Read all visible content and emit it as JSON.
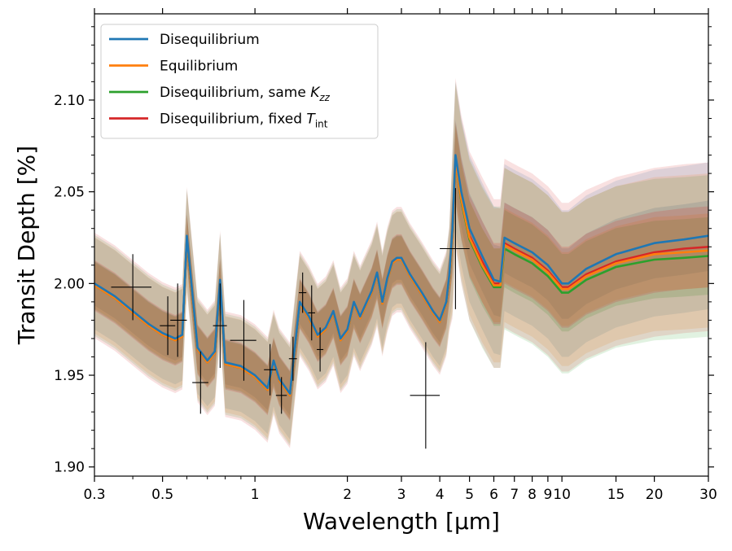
{
  "chart_data": {
    "type": "line",
    "xscale": "log",
    "xlabel": "Wavelength [µm]",
    "ylabel": "Transit Depth [%]",
    "xlim": [
      0.3,
      30
    ],
    "ylim": [
      1.895,
      2.147
    ],
    "xticks": [
      {
        "v": 0.3,
        "label": "0.3"
      },
      {
        "v": 0.5,
        "label": "0.5"
      },
      {
        "v": 1,
        "label": "1"
      },
      {
        "v": 2,
        "label": "2"
      },
      {
        "v": 3,
        "label": "3"
      },
      {
        "v": 4,
        "label": "4"
      },
      {
        "v": 5,
        "label": "5"
      },
      {
        "v": 6,
        "label": "6"
      },
      {
        "v": 7,
        "label": "7"
      },
      {
        "v": 8,
        "label": "8"
      },
      {
        "v": 9,
        "label": "9"
      },
      {
        "v": 10,
        "label": "10"
      },
      {
        "v": 15,
        "label": "15"
      },
      {
        "v": 20,
        "label": "20"
      },
      {
        "v": 30,
        "label": "30"
      }
    ],
    "yticks": [
      {
        "v": 1.9,
        "label": "1.90"
      },
      {
        "v": 1.95,
        "label": "1.95"
      },
      {
        "v": 2.0,
        "label": "2.00"
      },
      {
        "v": 2.05,
        "label": "2.05"
      },
      {
        "v": 2.1,
        "label": "2.10"
      }
    ],
    "legend_position": "top-left",
    "series": [
      {
        "name": "Disequilibrium",
        "color": "#1f77b4",
        "x": [
          0.3,
          0.35,
          0.4,
          0.45,
          0.5,
          0.55,
          0.58,
          0.6,
          0.65,
          0.7,
          0.74,
          0.77,
          0.8,
          0.9,
          1.0,
          1.1,
          1.15,
          1.2,
          1.3,
          1.35,
          1.4,
          1.5,
          1.6,
          1.7,
          1.8,
          1.9,
          2.0,
          2.1,
          2.2,
          2.4,
          2.5,
          2.6,
          2.7,
          2.8,
          2.9,
          3.0,
          3.2,
          3.5,
          3.8,
          4.0,
          4.2,
          4.3,
          4.4,
          4.5,
          4.7,
          5.0,
          5.5,
          6.0,
          6.3,
          6.5,
          7.0,
          8.0,
          9.0,
          10.0,
          10.5,
          12.0,
          15.0,
          20.0,
          25.0,
          30.0
        ],
        "y": [
          2.0,
          1.993,
          1.985,
          1.978,
          1.973,
          1.97,
          1.972,
          2.026,
          1.965,
          1.958,
          1.963,
          2.002,
          1.957,
          1.955,
          1.95,
          1.943,
          1.958,
          1.948,
          1.94,
          1.966,
          1.99,
          1.982,
          1.972,
          1.976,
          1.985,
          1.97,
          1.975,
          1.99,
          1.982,
          1.996,
          2.006,
          1.99,
          2.003,
          2.012,
          2.014,
          2.014,
          2.005,
          1.995,
          1.985,
          1.98,
          1.99,
          2.005,
          2.03,
          2.07,
          2.05,
          2.03,
          2.015,
          2.002,
          2.001,
          2.025,
          2.022,
          2.017,
          2.01,
          2.0,
          2.0,
          2.008,
          2.016,
          2.022,
          2.024,
          2.026
        ]
      },
      {
        "name": "Equilibrium",
        "color": "#ff7f0e",
        "x": [
          0.3,
          0.35,
          0.4,
          0.45,
          0.5,
          0.55,
          0.58,
          0.6,
          0.65,
          0.7,
          0.74,
          0.77,
          0.8,
          0.9,
          1.0,
          1.1,
          1.15,
          1.2,
          1.3,
          1.35,
          1.4,
          1.5,
          1.6,
          1.7,
          1.8,
          1.9,
          2.0,
          2.1,
          2.2,
          2.4,
          2.5,
          2.6,
          2.7,
          2.8,
          2.9,
          3.0,
          3.2,
          3.5,
          3.8,
          4.0,
          4.2,
          4.3,
          4.4,
          4.5,
          4.7,
          5.0,
          5.5,
          6.0,
          6.3,
          6.5,
          7.0,
          8.0,
          9.0,
          10.0,
          10.5,
          12.0,
          15.0,
          20.0,
          25.0,
          30.0
        ],
        "y": [
          1.999,
          1.992,
          1.984,
          1.977,
          1.972,
          1.969,
          1.971,
          2.024,
          1.964,
          1.957,
          1.962,
          2.0,
          1.956,
          1.954,
          1.949,
          1.942,
          1.957,
          1.947,
          1.939,
          1.965,
          1.989,
          1.981,
          1.971,
          1.975,
          1.984,
          1.969,
          1.974,
          1.989,
          1.981,
          1.995,
          2.005,
          1.989,
          2.002,
          2.011,
          2.013,
          2.013,
          2.004,
          1.994,
          1.984,
          1.979,
          1.989,
          2.003,
          2.027,
          2.066,
          2.046,
          2.025,
          2.01,
          1.999,
          1.999,
          2.021,
          2.018,
          2.013,
          2.006,
          1.997,
          1.997,
          2.004,
          2.011,
          2.016,
          2.017,
          2.018
        ]
      },
      {
        "name": "Disequilibrium, same K_zz",
        "color": "#2ca02c",
        "x": [
          0.3,
          0.35,
          0.4,
          0.45,
          0.5,
          0.55,
          0.58,
          0.6,
          0.65,
          0.7,
          0.74,
          0.77,
          0.8,
          0.9,
          1.0,
          1.1,
          1.15,
          1.2,
          1.3,
          1.35,
          1.4,
          1.5,
          1.6,
          1.7,
          1.8,
          1.9,
          2.0,
          2.1,
          2.2,
          2.4,
          2.5,
          2.6,
          2.7,
          2.8,
          2.9,
          3.0,
          3.2,
          3.5,
          3.8,
          4.0,
          4.2,
          4.3,
          4.4,
          4.5,
          4.7,
          5.0,
          5.5,
          6.0,
          6.3,
          6.5,
          7.0,
          8.0,
          9.0,
          10.0,
          10.5,
          12.0,
          15.0,
          20.0,
          25.0,
          30.0
        ],
        "y": [
          1.999,
          1.992,
          1.984,
          1.977,
          1.972,
          1.969,
          1.971,
          2.024,
          1.964,
          1.957,
          1.962,
          2.0,
          1.956,
          1.954,
          1.949,
          1.942,
          1.957,
          1.947,
          1.939,
          1.965,
          1.989,
          1.981,
          1.971,
          1.975,
          1.984,
          1.969,
          1.974,
          1.989,
          1.981,
          1.995,
          2.005,
          1.989,
          2.002,
          2.011,
          2.013,
          2.013,
          2.004,
          1.994,
          1.984,
          1.979,
          1.989,
          2.003,
          2.027,
          2.066,
          2.045,
          2.024,
          2.009,
          1.998,
          1.998,
          2.019,
          2.016,
          2.011,
          2.004,
          1.995,
          1.995,
          2.002,
          2.009,
          2.013,
          2.014,
          2.015
        ]
      },
      {
        "name": "Disequilibrium, fixed T_int",
        "color": "#d62728",
        "x": [
          0.3,
          0.35,
          0.4,
          0.45,
          0.5,
          0.55,
          0.58,
          0.6,
          0.65,
          0.7,
          0.74,
          0.77,
          0.8,
          0.9,
          1.0,
          1.1,
          1.15,
          1.2,
          1.3,
          1.35,
          1.4,
          1.5,
          1.6,
          1.7,
          1.8,
          1.9,
          2.0,
          2.1,
          2.2,
          2.4,
          2.5,
          2.6,
          2.7,
          2.8,
          2.9,
          3.0,
          3.2,
          3.5,
          3.8,
          4.0,
          4.2,
          4.3,
          4.4,
          4.5,
          4.7,
          5.0,
          5.5,
          6.0,
          6.3,
          6.5,
          7.0,
          8.0,
          9.0,
          10.0,
          10.5,
          12.0,
          15.0,
          20.0,
          25.0,
          30.0
        ],
        "y": [
          1.999,
          1.992,
          1.984,
          1.977,
          1.972,
          1.969,
          1.971,
          2.024,
          1.964,
          1.957,
          1.962,
          2.0,
          1.956,
          1.954,
          1.949,
          1.942,
          1.957,
          1.947,
          1.939,
          1.965,
          1.989,
          1.981,
          1.971,
          1.975,
          1.984,
          1.969,
          1.974,
          1.989,
          1.981,
          1.995,
          2.005,
          1.989,
          2.002,
          2.011,
          2.013,
          2.013,
          2.004,
          1.994,
          1.984,
          1.979,
          1.989,
          2.003,
          2.027,
          2.066,
          2.046,
          2.026,
          2.012,
          2.0,
          2.0,
          2.022,
          2.019,
          2.014,
          2.007,
          1.998,
          1.998,
          2.005,
          2.012,
          2.017,
          2.019,
          2.02
        ]
      }
    ],
    "uncertainty_bands": {
      "inner_halfwidth": 0.012,
      "outer_halfwidth": 0.025,
      "note": "shaded 1σ/2σ regions around each model, wider beyond 4.3 µm"
    },
    "observations": [
      {
        "x": 0.4,
        "xerr": [
          0.06,
          0.06
        ],
        "y": 1.998,
        "yerr": 0.018
      },
      {
        "x": 0.52,
        "xerr": [
          0.03,
          0.03
        ],
        "y": 1.977,
        "yerr": 0.016
      },
      {
        "x": 0.56,
        "xerr": [
          0.03,
          0.04
        ],
        "y": 1.98,
        "yerr": 0.02
      },
      {
        "x": 0.665,
        "xerr": [
          0.04,
          0.04
        ],
        "y": 1.946,
        "yerr": 0.017
      },
      {
        "x": 0.77,
        "xerr": [
          0.04,
          0.04
        ],
        "y": 1.977,
        "yerr": 0.023
      },
      {
        "x": 0.92,
        "xerr": [
          0.09,
          0.09
        ],
        "y": 1.969,
        "yerr": 0.022
      },
      {
        "x": 1.12,
        "xerr": [
          0.05,
          0.05
        ],
        "y": 1.953,
        "yerr": 0.014
      },
      {
        "x": 1.22,
        "xerr": [
          0.05,
          0.05
        ],
        "y": 1.939,
        "yerr": 0.01
      },
      {
        "x": 1.33,
        "xerr": [
          0.04,
          0.04
        ],
        "y": 1.959,
        "yerr": 0.012
      },
      {
        "x": 1.43,
        "xerr": [
          0.04,
          0.04
        ],
        "y": 1.995,
        "yerr": 0.011
      },
      {
        "x": 1.53,
        "xerr": [
          0.04,
          0.04
        ],
        "y": 1.984,
        "yerr": 0.015
      },
      {
        "x": 1.63,
        "xerr": [
          0.04,
          0.04
        ],
        "y": 1.964,
        "yerr": 0.012
      },
      {
        "x": 3.6,
        "xerr": [
          0.4,
          0.4
        ],
        "y": 1.939,
        "yerr": 0.029
      },
      {
        "x": 4.5,
        "xerr": [
          0.5,
          0.5
        ],
        "y": 2.019,
        "yerr": 0.033
      }
    ]
  },
  "legend": {
    "items": [
      {
        "label": "Disequilibrium",
        "color": "#1f77b4"
      },
      {
        "label": "Equilibrium",
        "color": "#ff7f0e"
      },
      {
        "label": "Disequilibrium, same ",
        "sym": "K",
        "sub": "zz",
        "color": "#2ca02c"
      },
      {
        "label": "Disequilibrium, fixed ",
        "sym": "T",
        "sub": "int",
        "color": "#d62728"
      }
    ]
  }
}
